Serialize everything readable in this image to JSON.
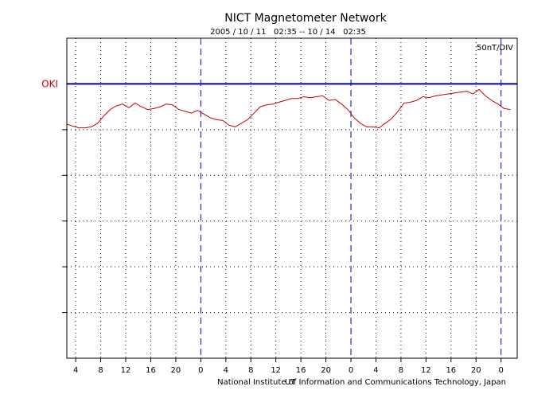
{
  "chart_data": {
    "type": "line",
    "title": "NICT Magnetometer Network",
    "subtitle": "2005 / 10 / 11   02:35 -- 10 / 14   02:35",
    "scale_label": "50nT/DIV",
    "footer": "National Institute of Information and Communications Technology, Japan",
    "footer_overlap": "UT",
    "x_unit": "hours since 2005/10/11 00:00 UT",
    "xlim": [
      2.583,
      74.583
    ],
    "x_ticks": [
      {
        "x": 4,
        "label": "4"
      },
      {
        "x": 8,
        "label": "8"
      },
      {
        "x": 12,
        "label": "12"
      },
      {
        "x": 16,
        "label": "16"
      },
      {
        "x": 20,
        "label": "20"
      },
      {
        "x": 24,
        "label": "0"
      },
      {
        "x": 28,
        "label": "4"
      },
      {
        "x": 32,
        "label": "8"
      },
      {
        "x": 36,
        "label": "12"
      },
      {
        "x": 40,
        "label": "16"
      },
      {
        "x": 44,
        "label": "20"
      },
      {
        "x": 48,
        "label": "0"
      },
      {
        "x": 52,
        "label": "4"
      },
      {
        "x": 56,
        "label": "8"
      },
      {
        "x": 60,
        "label": "12"
      },
      {
        "x": 64,
        "label": "16"
      },
      {
        "x": 68,
        "label": "20"
      },
      {
        "x": 72,
        "label": "0"
      }
    ],
    "day_boundaries": [
      24,
      48,
      72
    ],
    "y_unit": "nT",
    "ylim": [
      -300,
      50
    ],
    "y_grid_step": 50,
    "grid": true,
    "station": {
      "name": "OKI",
      "baseline": 0,
      "color": "#cc0000",
      "baseline_color": "#00008b"
    },
    "series": [
      {
        "name": "OKI",
        "color": "#cc0000",
        "x": [
          2.6,
          3.5,
          4.5,
          5.5,
          6.5,
          7.5,
          8.5,
          9.5,
          10.5,
          11.5,
          12.5,
          13.5,
          14.5,
          15.5,
          16.5,
          17.5,
          18.5,
          19.5,
          20.5,
          21.5,
          22.5,
          23.5,
          24.5,
          25.5,
          26.5,
          27.5,
          28.5,
          29.5,
          30.5,
          31.5,
          32.5,
          33.5,
          34.5,
          35.5,
          36.5,
          37.5,
          38.5,
          39.5,
          40.5,
          41.5,
          42.5,
          43.5,
          44.5,
          45.5,
          46.5,
          47.5,
          48.5,
          49.5,
          50.5,
          51.5,
          52.5,
          53.5,
          54.5,
          55.5,
          56.5,
          57.5,
          58.5,
          59.5,
          60.5,
          61.5,
          62.5,
          63.5,
          64.5,
          65.5,
          66.5,
          67.5,
          68.5,
          69.5,
          70.5,
          71.5,
          72.5,
          73.5
        ],
        "values": [
          -44,
          -46,
          -48,
          -48,
          -47,
          -43,
          -35,
          -28,
          -24,
          -22,
          -26,
          -21,
          -25,
          -28,
          -27,
          -25,
          -22,
          -23,
          -28,
          -30,
          -32,
          -29,
          -33,
          -37,
          -39,
          -40,
          -45,
          -47,
          -43,
          -39,
          -32,
          -25,
          -23,
          -22,
          -20,
          -18,
          -16,
          -16,
          -14,
          -15,
          -14,
          -13,
          -18,
          -17,
          -22,
          -28,
          -37,
          -43,
          -47,
          -47,
          -48,
          -43,
          -38,
          -30,
          -21,
          -20,
          -18,
          -14,
          -15,
          -13,
          -12,
          -11,
          -10,
          -9,
          -8,
          -11,
          -6,
          -13,
          -18,
          -22,
          -27,
          -28
        ]
      }
    ]
  }
}
